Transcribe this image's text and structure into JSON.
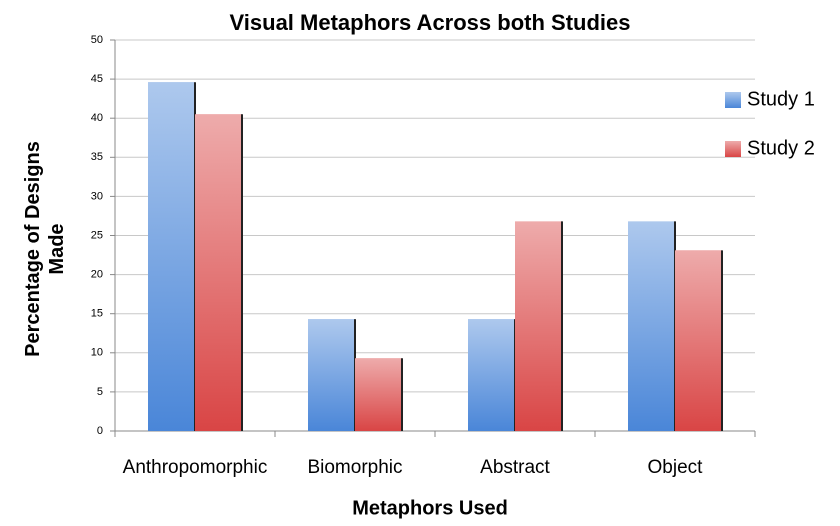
{
  "chart_data": {
    "type": "bar",
    "title": "Visual Metaphors Across both Studies",
    "x_label": "Metaphors Used",
    "y_label": "Percentage of Designs Made",
    "categories": [
      "Anthropomorphic",
      "Biomorphic",
      "Abstract",
      "Object"
    ],
    "series": [
      {
        "name": "Study 1",
        "color": "#4a86d8",
        "values": [
          44.6,
          14.3,
          14.3,
          26.8
        ]
      },
      {
        "name": "Study 2",
        "color": "#d94545",
        "values": [
          40.5,
          9.3,
          26.8,
          23.1
        ]
      }
    ],
    "ylim": [
      0,
      50
    ],
    "yticks": [
      0,
      5,
      10,
      15,
      20,
      25,
      30,
      35,
      40,
      45,
      50
    ],
    "grid": true,
    "legend": "right"
  }
}
